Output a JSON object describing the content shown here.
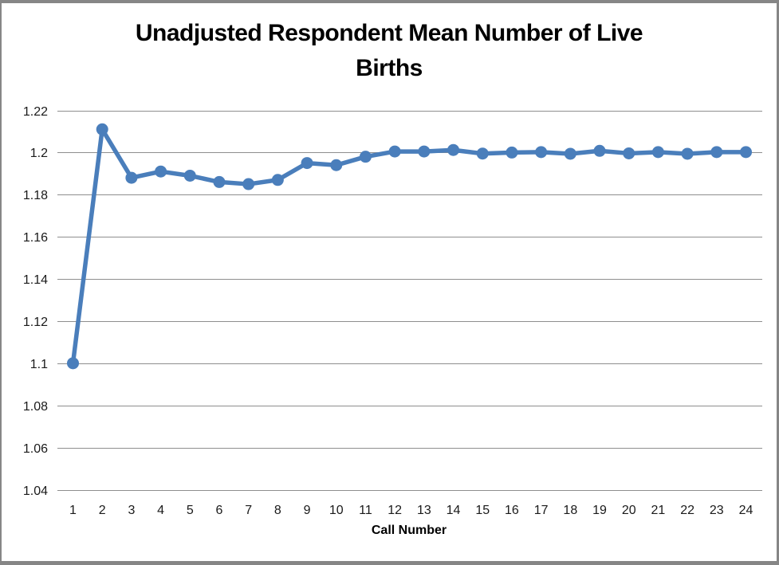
{
  "window": {
    "background": "#ffffff",
    "frame_border_color": "#868686"
  },
  "chart_data": {
    "type": "line",
    "title": "Unadjusted Respondent Mean Number of Live Births",
    "xlabel": "Call Number",
    "ylabel": "",
    "categories": [
      "1",
      "2",
      "3",
      "4",
      "5",
      "6",
      "7",
      "8",
      "9",
      "10",
      "11",
      "12",
      "13",
      "14",
      "15",
      "16",
      "17",
      "18",
      "19",
      "20",
      "21",
      "22",
      "23",
      "24"
    ],
    "values": [
      1.1,
      1.211,
      1.188,
      1.191,
      1.189,
      1.186,
      1.185,
      1.187,
      1.195,
      1.194,
      1.198,
      1.2005,
      1.2005,
      1.2012,
      1.1995,
      1.2,
      1.2002,
      1.1994,
      1.2008,
      1.1996,
      1.2002,
      1.1994,
      1.2002,
      1.2002
    ],
    "ylim": [
      1.04,
      1.22
    ],
    "ytick_step": 0.02,
    "ytick_labels": [
      "1.22",
      "1.2",
      "1.18",
      "1.16",
      "1.14",
      "1.12",
      "1.1",
      "1.08",
      "1.06",
      "1.04"
    ],
    "ytick_values": [
      1.22,
      1.2,
      1.18,
      1.16,
      1.14,
      1.12,
      1.1,
      1.08,
      1.06,
      1.04
    ],
    "grid": "horizontal",
    "legend_position": "none",
    "line_color": "#4a7ebb",
    "marker": "circle",
    "marker_color": "#4a7ebb",
    "gridline_color": "#8e8e8e",
    "tick_text_color": "#1a1a1a",
    "title_color": "#000000"
  }
}
